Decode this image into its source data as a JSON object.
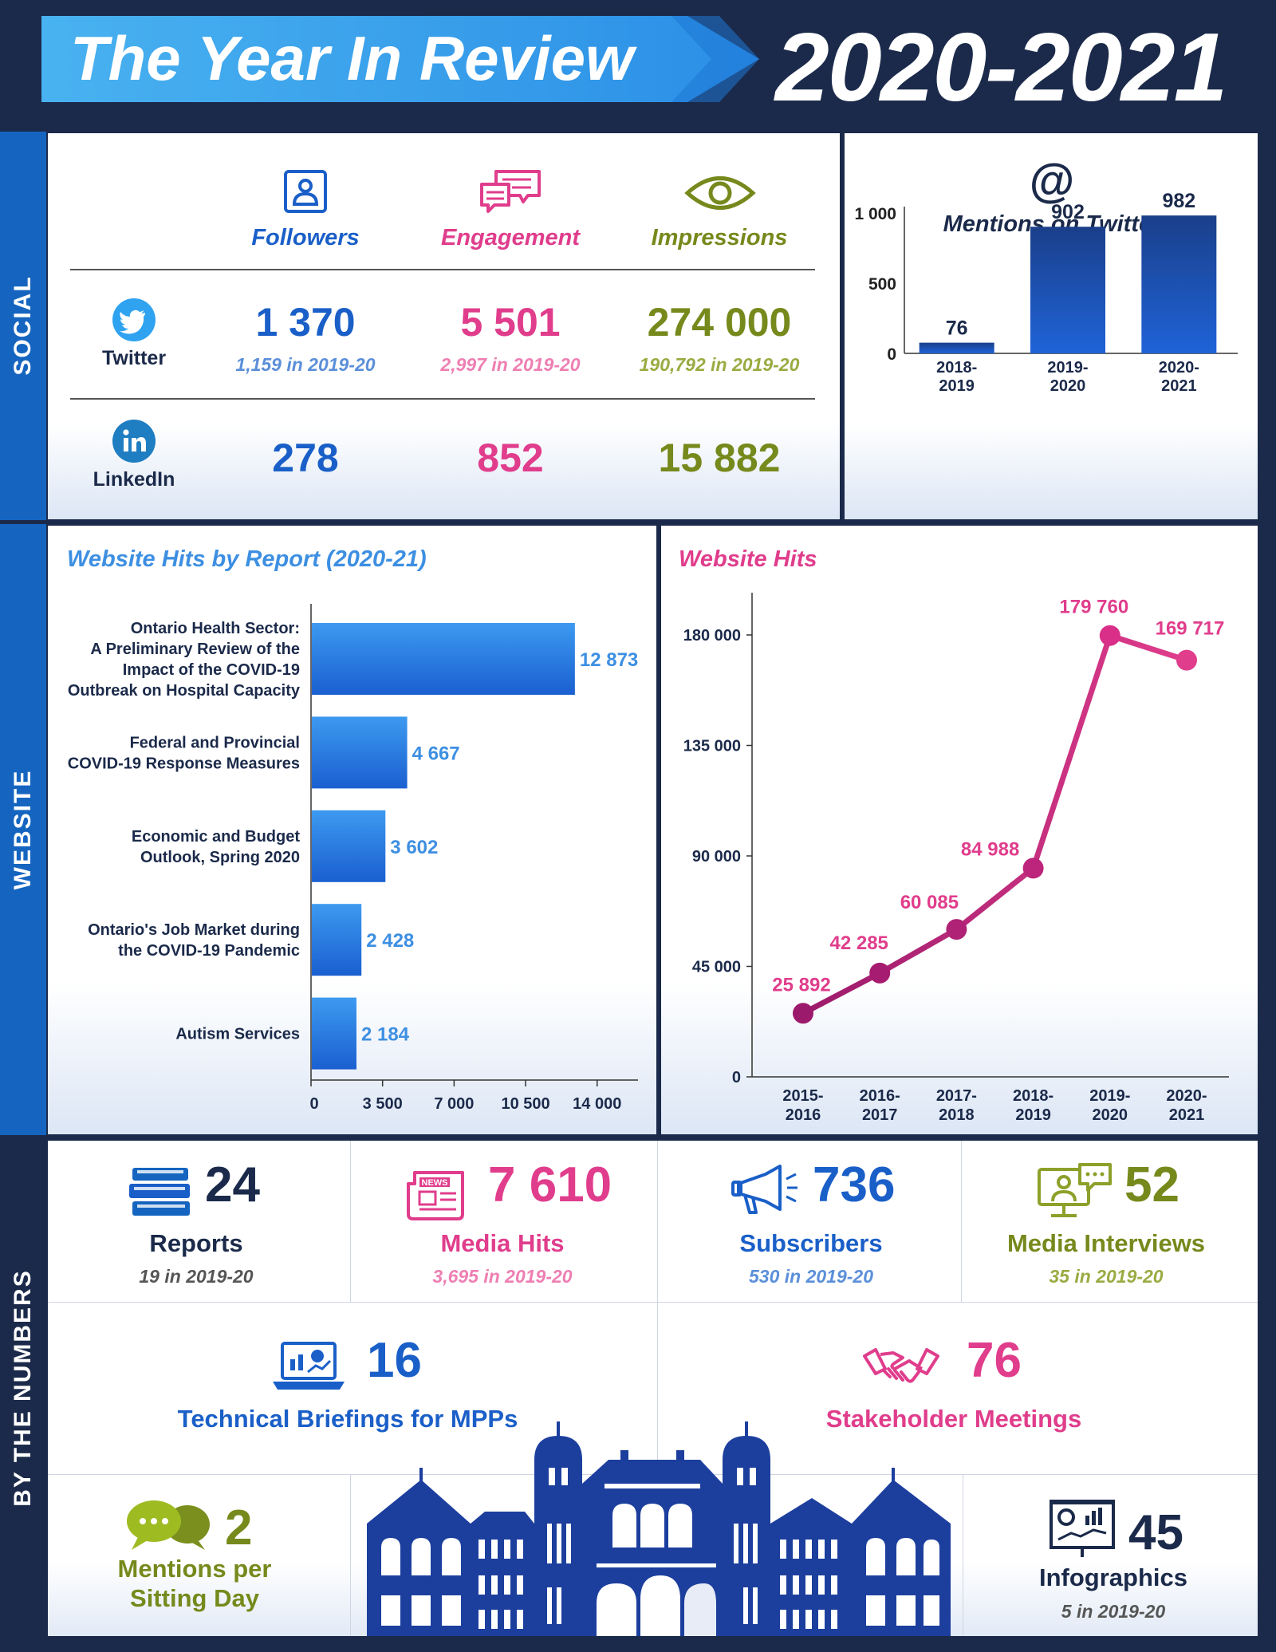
{
  "header": {
    "title": "The Year In Review",
    "year": "2020-2021"
  },
  "sections": {
    "social": "SOCIAL",
    "website": "WEBSITE",
    "numbers": "BY THE NUMBERS"
  },
  "social": {
    "columns": [
      "Followers",
      "Engagement",
      "Impressions"
    ],
    "twitter": {
      "label": "Twitter",
      "followers": "1 370",
      "engagement": "5 501",
      "impressions": "274 000",
      "followers_prev": "1,159 in 2019-20",
      "engagement_prev": "2,997 in 2019-20",
      "impressions_prev": "190,792 in 2019-20"
    },
    "linkedin": {
      "label": "LinkedIn",
      "followers": "278",
      "engagement": "852",
      "impressions": "15 882"
    }
  },
  "colors": {
    "navy": "#1b2a4a",
    "blue": "#1a5fc8",
    "pink": "#e03d8c",
    "olive": "#76891c",
    "magenta": "#9c1a6b"
  },
  "chart_data": [
    {
      "type": "bar",
      "title": "Mentions on Twitter",
      "categories": [
        "2018-2019",
        "2019-2020",
        "2020-2021"
      ],
      "category_lines": [
        [
          "2018-",
          "2019"
        ],
        [
          "2019-",
          "2020"
        ],
        [
          "2020-",
          "2021"
        ]
      ],
      "values": [
        76,
        902,
        982
      ],
      "value_labels": [
        "76",
        "902",
        "982"
      ],
      "ylim": [
        0,
        1100
      ],
      "yticks": [
        0,
        500,
        1000
      ],
      "ytick_labels": [
        "0",
        "500",
        "1 000"
      ]
    },
    {
      "type": "bar",
      "orientation": "horizontal",
      "title": "Website Hits by Report (2020-21)",
      "categories": [
        [
          "Ontario Health Sector:",
          "A Preliminary Review of the",
          "Impact of the COVID-19",
          "Outbreak on Hospital Capacity"
        ],
        [
          "Federal and Provincial",
          "COVID-19 Response Measures"
        ],
        [
          "Economic and Budget",
          "Outlook, Spring 2020"
        ],
        [
          "Ontario's Job Market during",
          "the COVID-19 Pandemic"
        ],
        [
          "Autism Services"
        ]
      ],
      "values": [
        12873,
        4667,
        3602,
        2428,
        2184
      ],
      "value_labels": [
        "12 873",
        "4 667",
        "3 602",
        "2 428",
        "2 184"
      ],
      "xlim": [
        0,
        16000
      ],
      "xticks": [
        0,
        3500,
        7000,
        10500,
        14000
      ],
      "xtick_labels": [
        "0",
        "3 500",
        "7 000",
        "10 500",
        "14 000"
      ]
    },
    {
      "type": "line",
      "title": "Website Hits",
      "categories": [
        "2015-2016",
        "2016-2017",
        "2017-2018",
        "2018-2019",
        "2019-2020",
        "2020-2021"
      ],
      "category_lines": [
        [
          "2015-",
          "2016"
        ],
        [
          "2016-",
          "2017"
        ],
        [
          "2017-",
          "2018"
        ],
        [
          "2018-",
          "2019"
        ],
        [
          "2019-",
          "2020"
        ],
        [
          "2020-",
          "2021"
        ]
      ],
      "values": [
        25892,
        42285,
        60085,
        84988,
        179760,
        169717
      ],
      "value_labels": [
        "25 892",
        "42 285",
        "60 085",
        "84 988",
        "179 760",
        "169 717"
      ],
      "ylim": [
        0,
        196000
      ],
      "yticks": [
        0,
        45000,
        90000,
        135000,
        180000
      ],
      "ytick_labels": [
        "0",
        "45 000",
        "90 000",
        "135 000",
        "180 000"
      ]
    }
  ],
  "numbers": {
    "reports": {
      "value": "24",
      "label": "Reports",
      "prev": "19 in 2019-20"
    },
    "media_hits": {
      "value": "7 610",
      "label": "Media Hits",
      "prev": "3,695 in 2019-20"
    },
    "subscribers": {
      "value": "736",
      "label": "Subscribers",
      "prev": "530 in 2019-20"
    },
    "media_interviews": {
      "value": "52",
      "label": "Media Interviews",
      "prev": "35 in 2019-20"
    },
    "briefings": {
      "value": "16",
      "label": "Technical Briefings for MPPs"
    },
    "stakeholders": {
      "value": "76",
      "label": "Stakeholder Meetings"
    },
    "mentions": {
      "value": "2",
      "label_line1": "Mentions per",
      "label_line2": "Sitting Day"
    },
    "infographics": {
      "value": "45",
      "label": "Infographics",
      "prev": "5 in 2019-20"
    },
    "news_icon_text": "NEWS"
  }
}
